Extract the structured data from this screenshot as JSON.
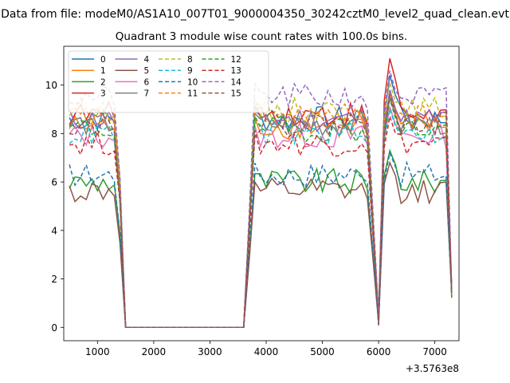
{
  "figure": {
    "suptitle": "Data from file: modeM0/AS1A10_007T01_9000004350_30242cztM0_level2_quad_clean.evt"
  },
  "chart_data": {
    "type": "line",
    "title": "Quadrant 3 module wise count rates with 100.0s bins.",
    "xlabel": "",
    "ylabel": "",
    "x_offset_label": "+3.5763e8",
    "xlim": [
      400,
      7430
    ],
    "ylim": [
      -0.55,
      11.6
    ],
    "xticks": [
      1000,
      2000,
      3000,
      4000,
      5000,
      6000,
      7000
    ],
    "yticks": [
      0,
      2,
      4,
      6,
      8,
      10
    ],
    "grid": false,
    "legend": {
      "placement": "top-left",
      "columns": 4
    },
    "x": [
      500,
      600,
      700,
      800,
      900,
      1000,
      1100,
      1200,
      1300,
      1400,
      1500,
      1600,
      1700,
      1800,
      1900,
      2000,
      2100,
      2200,
      2300,
      2400,
      2500,
      2600,
      2700,
      2800,
      2900,
      3000,
      3100,
      3200,
      3300,
      3400,
      3500,
      3600,
      3700,
      3800,
      3900,
      4000,
      4100,
      4200,
      4300,
      4400,
      4500,
      4600,
      4700,
      4800,
      4900,
      5000,
      5100,
      5200,
      5300,
      5400,
      5500,
      5600,
      5700,
      5800,
      5900,
      6000,
      6100,
      6200,
      6300,
      6400,
      6500,
      6600,
      6700,
      6800,
      6900,
      7000,
      7100,
      7200,
      7300
    ],
    "series": [
      {
        "name": "0",
        "color": "#1f77b4",
        "dash": "solid",
        "level": 8.6,
        "spike": 10.4
      },
      {
        "name": "1",
        "color": "#ff7f0e",
        "dash": "solid",
        "level": 8.3,
        "spike": 9.7
      },
      {
        "name": "2",
        "color": "#2ca02c",
        "dash": "solid",
        "level": 6.0,
        "spike": 7.3
      },
      {
        "name": "3",
        "color": "#d62728",
        "dash": "solid",
        "level": 8.8,
        "spike": 11.1
      },
      {
        "name": "4",
        "color": "#9467bd",
        "dash": "solid",
        "level": 8.6,
        "spike": 9.8
      },
      {
        "name": "5",
        "color": "#8c564b",
        "dash": "solid",
        "level": 5.6,
        "spike": 6.8
      },
      {
        "name": "6",
        "color": "#e377c2",
        "dash": "solid",
        "level": 7.9,
        "spike": 9.1
      },
      {
        "name": "7",
        "color": "#7f7f7f",
        "dash": "solid",
        "level": 8.4,
        "spike": 9.5
      },
      {
        "name": "8",
        "color": "#bcbd22",
        "dash": "dashed",
        "level": 9.0,
        "spike": 10.1
      },
      {
        "name": "9",
        "color": "#17becf",
        "dash": "dashed",
        "level": 8.0,
        "spike": 9.0
      },
      {
        "name": "10",
        "color": "#1f77b4",
        "dash": "dashed",
        "level": 6.3,
        "spike": 7.2
      },
      {
        "name": "11",
        "color": "#ff7f0e",
        "dash": "dashed",
        "level": 8.7,
        "spike": 9.6
      },
      {
        "name": "12",
        "color": "#2ca02c",
        "dash": "dashed",
        "level": 8.2,
        "spike": 9.4
      },
      {
        "name": "13",
        "color": "#d62728",
        "dash": "dashed",
        "level": 7.6,
        "spike": 8.7
      },
      {
        "name": "14",
        "color": "#9467bd",
        "dash": "dashed",
        "level": 9.5,
        "spike": 10.6
      },
      {
        "name": "15",
        "color": "#8c564b",
        "dash": "dashed",
        "level": 8.4,
        "spike": 9.6
      }
    ]
  }
}
